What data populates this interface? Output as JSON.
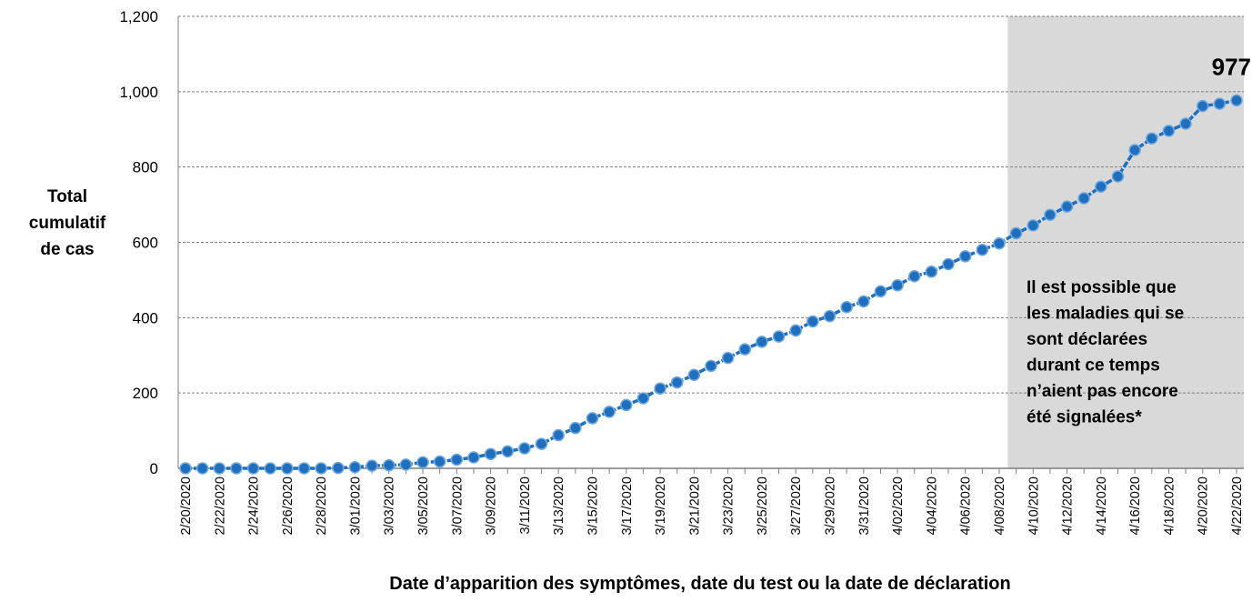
{
  "chart_data": {
    "type": "line",
    "x_label": "Date d’apparition des symptômes, date du test ou la date de déclaration",
    "y_label": [
      "Total",
      "cumulatif",
      "de cas"
    ],
    "annotation": [
      "Il est possible que",
      "les maladies qui se",
      "sont déclarées",
      "durant ce temps",
      "n’aient pas encore",
      "été signalées*"
    ],
    "shade_start": 48.5,
    "categories": [
      "2/20/2020",
      null,
      "2/22/2020",
      null,
      "2/24/2020",
      null,
      "2/26/2020",
      null,
      "2/28/2020",
      null,
      "3/01/2020",
      null,
      "3/03/2020",
      null,
      "3/05/2020",
      null,
      "3/07/2020",
      null,
      "3/09/2020",
      null,
      "3/11/2020",
      null,
      "3/13/2020",
      null,
      "3/15/2020",
      null,
      "3/17/2020",
      null,
      "3/19/2020",
      null,
      "3/21/2020",
      null,
      "3/23/2020",
      null,
      "3/25/2020",
      null,
      "3/27/2020",
      null,
      "3/29/2020",
      null,
      "3/31/2020",
      null,
      "4/02/2020",
      null,
      "4/04/2020",
      null,
      "4/06/2020",
      null,
      "4/08/2020",
      null,
      "4/10/2020",
      null,
      "4/12/2020",
      null,
      "4/14/2020",
      null,
      "4/16/2020",
      null,
      "4/18/2020",
      null,
      "4/20/2020",
      null,
      "4/22/2020"
    ],
    "series": [
      {
        "name": "Total cumulatif de cas",
        "color": "#1f6fc0",
        "values": [
          0,
          0,
          0,
          0,
          0,
          0,
          0,
          0,
          0,
          1,
          3,
          7,
          8,
          10,
          16,
          18,
          23,
          29,
          38,
          45,
          53,
          65,
          88,
          107,
          133,
          150,
          168,
          186,
          212,
          228,
          248,
          272,
          293,
          316,
          336,
          350,
          366,
          390,
          404,
          428,
          443,
          470,
          486,
          510,
          522,
          542,
          563,
          580,
          597,
          624,
          645,
          673,
          695,
          717,
          748,
          775,
          845,
          876,
          896,
          915,
          962,
          968,
          977
        ]
      }
    ],
    "ylim": [
      0,
      1200
    ],
    "yticks": [
      0,
      200,
      400,
      600,
      800,
      {
        "value": 1000,
        "label": "1,000"
      },
      {
        "value": 1200,
        "label": "1,200"
      }
    ],
    "grid": true
  }
}
